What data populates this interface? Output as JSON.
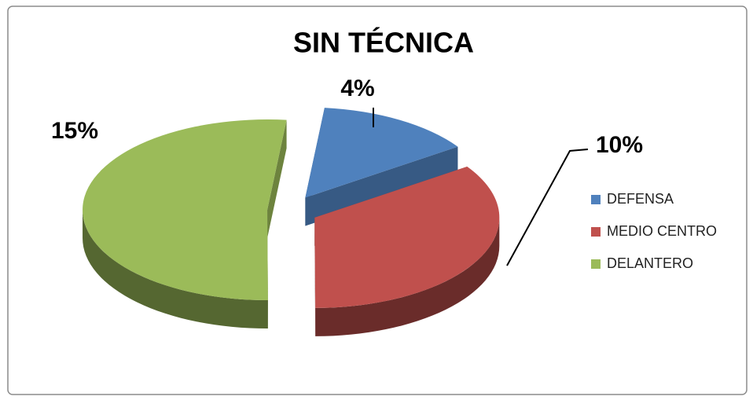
{
  "chart_data": {
    "type": "pie",
    "title": "SIN TÉCNICA",
    "categories": [
      "DEFENSA",
      "MEDIO CENTRO",
      "DELANTERO"
    ],
    "values": [
      4,
      10,
      15
    ],
    "value_labels": [
      "4%",
      "10%",
      "15%"
    ],
    "colors": [
      "#4f81bd",
      "#c0504d",
      "#9bbb59"
    ],
    "legend": "right"
  }
}
